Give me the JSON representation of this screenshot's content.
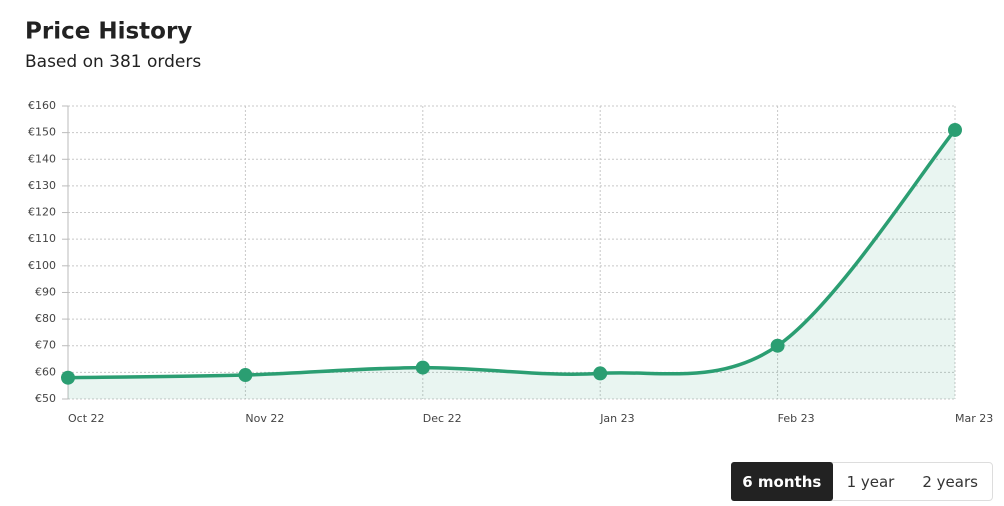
{
  "chart_data": {
    "type": "line",
    "title": "Price History",
    "subtitle": "Based on 381 orders",
    "categories": [
      "Oct 22",
      "Nov 22",
      "Dec 22",
      "Jan 23",
      "Feb 23",
      "Mar 23"
    ],
    "series": [
      {
        "name": "Price",
        "color": "#2b9e72",
        "values": [
          58,
          59,
          61.8,
          59.6,
          70,
          151
        ]
      }
    ],
    "ylim": [
      50,
      160
    ],
    "yticks": [
      {
        "value": 50,
        "label": "€50"
      },
      {
        "value": 60,
        "label": "€60"
      },
      {
        "value": 70,
        "label": "€70"
      },
      {
        "value": 80,
        "label": "€80"
      },
      {
        "value": 90,
        "label": "€90"
      },
      {
        "value": 100,
        "label": "€100"
      },
      {
        "value": 110,
        "label": "€110"
      },
      {
        "value": 120,
        "label": "€120"
      },
      {
        "value": 130,
        "label": "€130"
      },
      {
        "value": 140,
        "label": "€140"
      },
      {
        "value": 150,
        "label": "€150"
      },
      {
        "value": 160,
        "label": "€160"
      }
    ],
    "grid": true
  },
  "controls": [
    "6 months",
    "1 year",
    "2 years"
  ]
}
